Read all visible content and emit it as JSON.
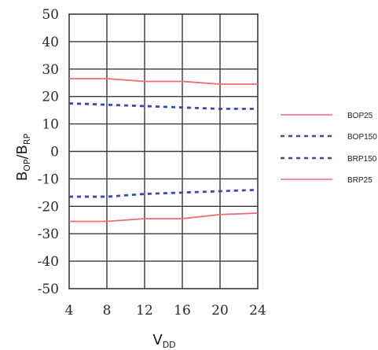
{
  "chart_data": {
    "type": "line",
    "x": [
      4,
      8,
      12,
      16,
      20,
      24
    ],
    "xlim": [
      4,
      24
    ],
    "ylim": [
      -50,
      50
    ],
    "x_ticks": [
      "4",
      "8",
      "12",
      "16",
      "20",
      "24"
    ],
    "y_ticks": [
      "50",
      "40",
      "30",
      "20",
      "10",
      "0",
      "-10",
      "-20",
      "-30",
      "-40",
      "-50"
    ],
    "xlabel": {
      "main": "V",
      "sub": "DD"
    },
    "ylabel": {
      "b1": "B",
      "s1": "OP",
      "slash": "/B",
      "s2": "RP"
    },
    "grid": true,
    "legend_position": "right",
    "series": [
      {
        "name": "BOP25",
        "color": "#f06a74",
        "style": "solid",
        "values": [
          26.5,
          26.5,
          25.5,
          25.5,
          24.5,
          24.5
        ]
      },
      {
        "name": "BOP150",
        "color": "#3a4aa8",
        "style": "dashed",
        "values": [
          17.5,
          17.0,
          16.5,
          16.0,
          15.5,
          15.5
        ]
      },
      {
        "name": "BRP150",
        "color": "#3a4aa8",
        "style": "dashed",
        "values": [
          -16.5,
          -16.5,
          -15.5,
          -15.0,
          -14.5,
          -14.0
        ]
      },
      {
        "name": "BRP25",
        "color": "#f06a74",
        "style": "solid",
        "values": [
          -25.5,
          -25.5,
          -24.5,
          -24.5,
          -23.0,
          -22.5
        ]
      }
    ]
  }
}
